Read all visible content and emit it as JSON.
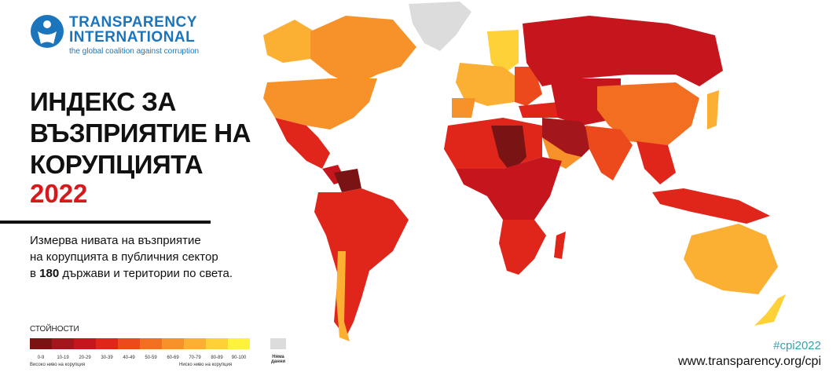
{
  "logo": {
    "line1": "TRANSPARENCY",
    "line2": "INTERNATIONAL",
    "tagline": "the global coalition against corruption"
  },
  "title": {
    "lines": [
      "ИНДЕКС ЗА",
      "ВЪЗПРИЯТИЕ НА",
      "КОРУПЦИЯТА"
    ],
    "year": "2022"
  },
  "description": {
    "line1": "Измерва нивата на възприятие",
    "line2": "на корупцията в публичния сектор",
    "line3_prefix": "в",
    "line3_bold": "180",
    "line3_suffix": "държави и територии по света."
  },
  "legend": {
    "title": "СТОЙНОСТИ",
    "bins": [
      {
        "label": "0-9",
        "color": "#7a1414"
      },
      {
        "label": "10-19",
        "color": "#a3161c"
      },
      {
        "label": "20-29",
        "color": "#c4161c"
      },
      {
        "label": "30-39",
        "color": "#e0251b"
      },
      {
        "label": "40-49",
        "color": "#ec4a1d"
      },
      {
        "label": "50-59",
        "color": "#f26f22"
      },
      {
        "label": "60-69",
        "color": "#f7922a"
      },
      {
        "label": "70-79",
        "color": "#fbb034"
      },
      {
        "label": "80-89",
        "color": "#fdd137"
      },
      {
        "label": "90-100",
        "color": "#fff23a"
      }
    ],
    "low_label": "Високо ниво на корупция",
    "high_label": "Ниско ниво на корупция",
    "no_data_lines": [
      "Няма",
      "данни"
    ],
    "no_data_color": "#dcdcdc"
  },
  "hashtag": "#cpi2022",
  "url": "www.transparency.org/cpi"
}
